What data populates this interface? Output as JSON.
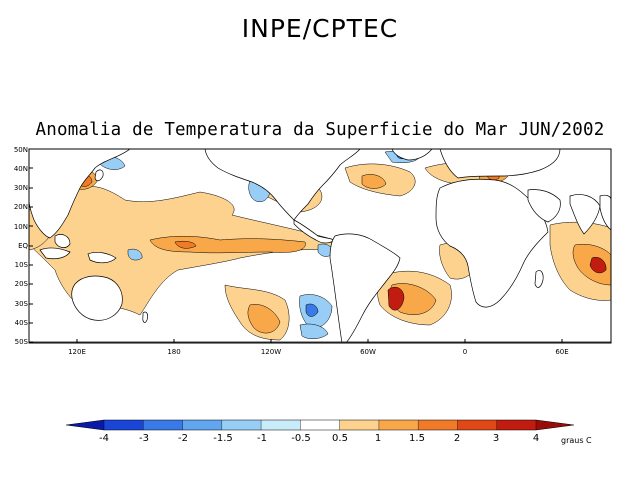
{
  "header": {
    "title": "INPE/CPTEC"
  },
  "map": {
    "title": "Anomalia de Temperatura da Superficie do Mar JUN/2002",
    "lat_labels": [
      "50N",
      "40N",
      "30N",
      "20N",
      "10N",
      "EQ",
      "10S",
      "20S",
      "30S",
      "40S",
      "50S"
    ],
    "lon_labels": [
      "120E",
      "180",
      "120W",
      "60W",
      "0",
      "60E"
    ]
  },
  "colorbar": {
    "labels": [
      "-4",
      "-3",
      "-2",
      "-1.5",
      "-1",
      "-0.5",
      "0.5",
      "1",
      "1.5",
      "2",
      "3",
      "4"
    ],
    "units": "graus C",
    "colors": [
      "#0a1aa8",
      "#1a46d8",
      "#3a7ae8",
      "#62a6f0",
      "#98cef6",
      "#c8ecfa",
      "#ffffff",
      "#fcd28e",
      "#f8a848",
      "#f07a28",
      "#e04818",
      "#c01c10",
      "#9a0c08"
    ]
  },
  "palette": {
    "land": "#ffffff",
    "coast": "#000000",
    "frame": "#000000"
  }
}
